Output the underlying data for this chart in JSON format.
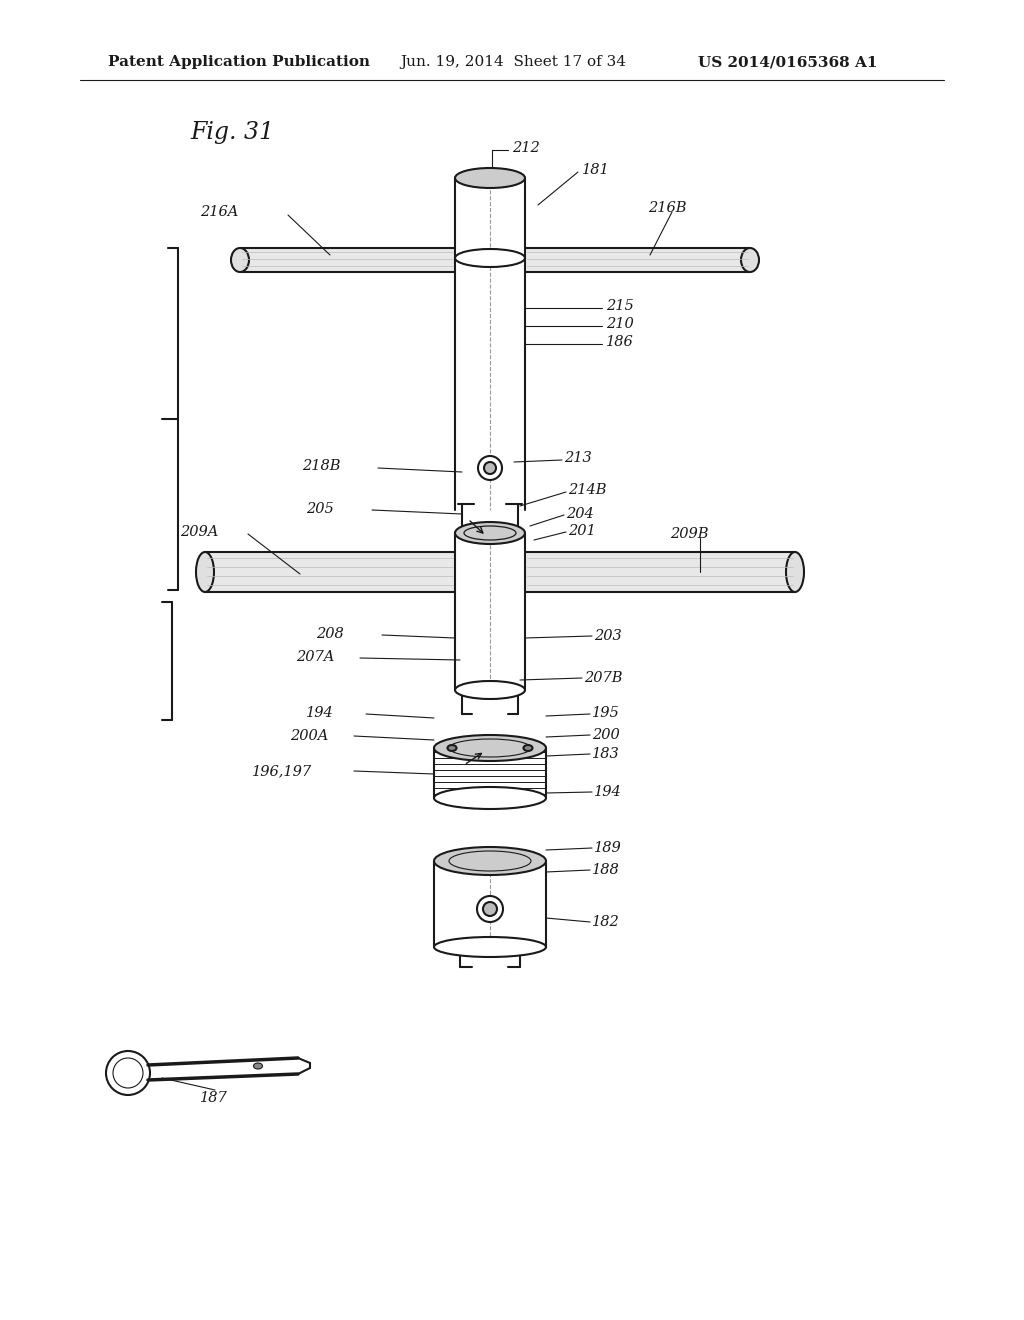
{
  "bg_color": "#ffffff",
  "line_color": "#1a1a1a",
  "text_color": "#1a1a1a",
  "header_text": "Patent Application Publication",
  "header_date": "Jun. 19, 2014  Sheet 17 of 34",
  "header_patent": "US 2014/0165368 A1",
  "fig_label": "Fig. 31"
}
